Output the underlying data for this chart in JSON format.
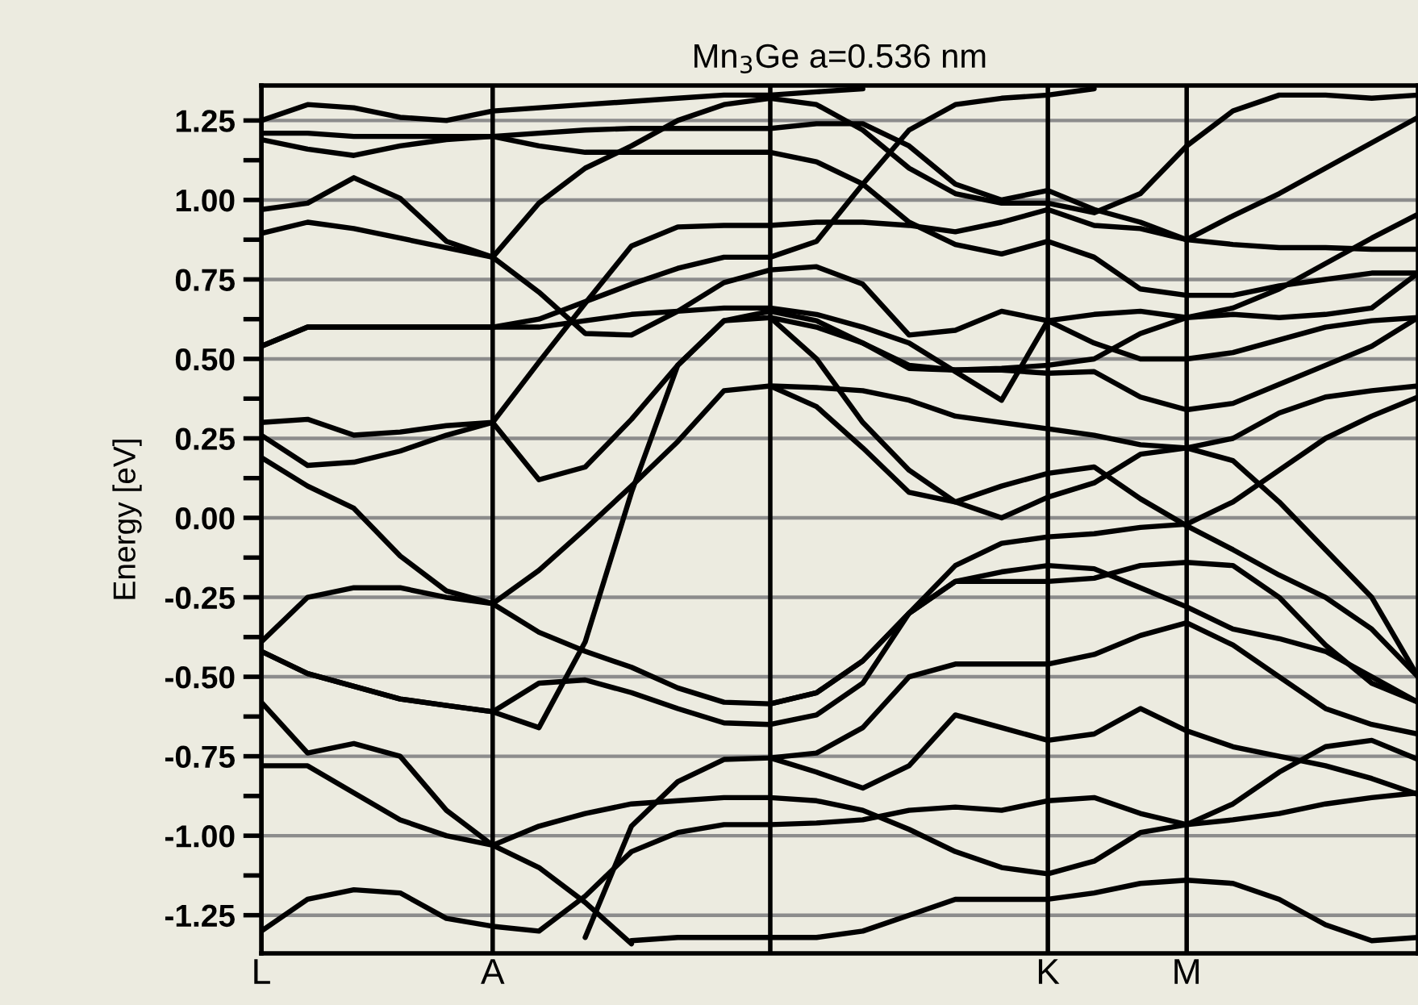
{
  "chart_data": {
    "type": "line",
    "title": "Mn$_{3}$Ge a=0.536 nm",
    "ylabel": "Energy [eV]",
    "categories": [
      "L",
      null,
      null,
      null,
      null,
      "A",
      null,
      null,
      null,
      null,
      null,
      null,
      null,
      null,
      null,
      null,
      null,
      "K",
      null,
      null,
      "M",
      null,
      null,
      null,
      null,
      null
    ],
    "ylim": [
      -1.37,
      1.36
    ],
    "yticks": [
      1.25,
      {
        "value": 1.125,
        "label": null
      },
      {
        "value": 1.0,
        "label": "1.00"
      },
      {
        "value": 0.875,
        "label": null
      },
      0.75,
      {
        "value": 0.625,
        "label": null
      },
      {
        "value": 0.5,
        "label": "0.50"
      },
      {
        "value": 0.375,
        "label": null
      },
      0.25,
      {
        "value": 0.125,
        "label": null
      },
      {
        "value": 0.0,
        "label": "0.00"
      },
      {
        "value": -0.125,
        "label": null
      },
      -0.25,
      {
        "value": -0.375,
        "label": null
      },
      {
        "value": -0.5,
        "label": "-0.50"
      },
      {
        "value": -0.625,
        "label": null
      },
      -0.75,
      {
        "value": -0.875,
        "label": null
      },
      {
        "value": -1.0,
        "label": "-1.00"
      },
      {
        "value": -1.125,
        "label": null
      },
      -1.25
    ],
    "grid": true,
    "line_style": "solid",
    "series": [
      {
        "color": "#000000",
        "values": [
          1.25,
          1.3,
          1.29,
          1.26,
          1.25,
          1.28,
          1.29,
          1.3,
          1.31,
          1.32,
          1.33,
          1.33,
          1.34,
          1.35,
          null,
          null,
          null,
          null,
          null,
          null,
          null,
          null,
          null,
          null,
          null,
          null
        ]
      },
      {
        "color": "#000000",
        "values": [
          1.21,
          1.21,
          1.2,
          1.2,
          1.2,
          1.2,
          1.21,
          1.22,
          1.225,
          1.225,
          1.225,
          1.225,
          1.24,
          1.24,
          1.17,
          1.05,
          1.0,
          1.03,
          0.97,
          0.93,
          0.875,
          0.86,
          0.85,
          0.85,
          0.845,
          0.845
        ]
      },
      {
        "color": "#000000",
        "values": [
          1.19,
          1.16,
          1.14,
          1.17,
          1.19,
          1.2,
          1.17,
          1.15,
          1.15,
          1.15,
          1.15,
          1.15,
          1.12,
          1.05,
          0.93,
          0.86,
          0.83,
          0.87,
          0.82,
          0.72,
          0.7,
          0.7,
          0.73,
          0.75,
          0.77,
          0.77
        ]
      },
      {
        "color": "#000000",
        "values": [
          0.97,
          0.99,
          1.07,
          1.005,
          0.87,
          0.82,
          0.99,
          1.1,
          1.17,
          1.25,
          1.3,
          1.32,
          1.3,
          1.22,
          1.1,
          1.02,
          0.99,
          0.99,
          0.96,
          1.02,
          1.17,
          1.28,
          1.33,
          1.33,
          1.32,
          1.33
        ]
      },
      {
        "color": "#000000",
        "values": [
          0.3,
          0.31,
          0.26,
          0.27,
          0.29,
          0.3,
          0.49,
          0.675,
          0.855,
          0.915,
          0.92,
          0.92,
          0.93,
          0.93,
          0.92,
          0.9,
          0.93,
          0.97,
          0.92,
          0.91,
          0.875,
          0.95,
          1.02,
          1.1,
          1.18,
          1.26
        ]
      },
      {
        "color": "#000000",
        "values": [
          0.54,
          0.6,
          0.6,
          0.6,
          0.6,
          0.6,
          0.625,
          0.68,
          0.735,
          0.785,
          0.82,
          0.82,
          0.87,
          1.05,
          1.22,
          1.3,
          1.32,
          1.33,
          1.35,
          null,
          null,
          null,
          null,
          null,
          null,
          null
        ]
      },
      {
        "color": "#000000",
        "values": [
          0.895,
          0.93,
          0.91,
          0.88,
          0.85,
          0.82,
          0.71,
          0.58,
          0.575,
          0.65,
          0.74,
          0.78,
          0.79,
          0.735,
          0.575,
          0.59,
          0.65,
          0.62,
          0.64,
          0.65,
          0.63,
          0.66,
          0.72,
          0.8,
          0.88,
          0.955
        ]
      },
      {
        "color": "#000000",
        "values": [
          0.54,
          0.6,
          0.6,
          0.6,
          0.6,
          0.6,
          0.6,
          0.62,
          0.64,
          0.65,
          0.66,
          0.66,
          0.64,
          0.6,
          0.55,
          0.46,
          0.37,
          0.62,
          0.55,
          0.5,
          0.5,
          0.52,
          0.56,
          0.6,
          0.62,
          0.63
        ]
      },
      {
        "color": "#000000",
        "values": [
          0.26,
          0.165,
          0.175,
          0.21,
          0.26,
          0.3,
          0.12,
          0.16,
          0.31,
          0.48,
          0.62,
          0.65,
          0.62,
          0.55,
          0.47,
          0.465,
          0.465,
          0.455,
          0.46,
          0.38,
          0.34,
          0.36,
          0.42,
          0.48,
          0.54,
          0.63
        ]
      },
      {
        "color": "#000000",
        "values": [
          -0.42,
          -0.49,
          -0.53,
          -0.57,
          -0.59,
          -0.61,
          -0.66,
          -0.39,
          0.08,
          0.48,
          0.62,
          0.63,
          0.6,
          0.55,
          0.48,
          0.465,
          0.47,
          0.48,
          0.5,
          0.58,
          0.63,
          0.64,
          0.63,
          0.64,
          0.66,
          0.77
        ]
      },
      {
        "color": "#000000",
        "values": [
          0.19,
          0.1,
          0.03,
          -0.12,
          -0.23,
          -0.27,
          -0.165,
          -0.035,
          0.1,
          0.24,
          0.4,
          0.415,
          0.41,
          0.4,
          0.37,
          0.32,
          0.3,
          0.28,
          0.26,
          0.23,
          0.22,
          0.25,
          0.33,
          0.38,
          0.4,
          0.415
        ]
      },
      {
        "color": "#000000",
        "values": [
          -0.39,
          -0.25,
          -0.22,
          -0.22,
          -0.25,
          -0.27,
          -0.36,
          -0.42,
          -0.47,
          -0.535,
          -0.58,
          -0.585,
          -0.55,
          -0.45,
          -0.3,
          -0.15,
          -0.08,
          -0.06,
          -0.05,
          -0.03,
          -0.02,
          0.05,
          0.15,
          0.25,
          0.32,
          0.38
        ]
      },
      {
        "color": "#000000",
        "values": [
          -0.42,
          -0.49,
          -0.53,
          -0.57,
          -0.59,
          -0.61,
          -0.52,
          -0.51,
          -0.55,
          -0.6,
          -0.645,
          -0.65,
          -0.62,
          -0.52,
          -0.3,
          -0.2,
          -0.2,
          -0.2,
          -0.19,
          -0.15,
          -0.14,
          -0.15,
          -0.25,
          -0.4,
          -0.52,
          -0.58
        ]
      },
      {
        "color": "#000000",
        "values": [
          null,
          null,
          null,
          null,
          null,
          null,
          null,
          -1.32,
          -0.97,
          -0.83,
          -0.76,
          -0.755,
          -0.74,
          -0.66,
          -0.5,
          -0.46,
          -0.46,
          -0.46,
          -0.43,
          -0.37,
          -0.33,
          -0.4,
          -0.5,
          -0.6,
          -0.65,
          -0.68
        ]
      },
      {
        "color": "#000000",
        "values": [
          -0.58,
          -0.74,
          -0.71,
          -0.75,
          -0.92,
          -1.03,
          -0.97,
          -0.93,
          -0.9,
          -0.89,
          -0.88,
          -0.88,
          -0.89,
          -0.92,
          -0.98,
          -1.05,
          -1.1,
          -1.12,
          -1.08,
          -0.99,
          -0.965,
          -0.95,
          -0.93,
          -0.9,
          -0.88,
          -0.865
        ]
      },
      {
        "color": "#000000",
        "values": [
          -1.3,
          -1.2,
          -1.17,
          -1.18,
          -1.26,
          -1.285,
          -1.3,
          -1.19,
          -1.05,
          -0.99,
          -0.965,
          -0.965,
          -0.96,
          -0.95,
          -0.92,
          -0.91,
          -0.92,
          -0.89,
          -0.88,
          -0.93,
          -0.965,
          -0.9,
          -0.8,
          -0.72,
          -0.7,
          -0.76
        ]
      },
      {
        "color": "#000000",
        "values": [
          null,
          null,
          null,
          null,
          null,
          null,
          null,
          null,
          -1.33,
          -1.32,
          -1.32,
          -1.32,
          -1.32,
          -1.3,
          -1.25,
          -1.2,
          -1.2,
          -1.2,
          -1.18,
          -1.15,
          -1.14,
          -1.15,
          -1.2,
          -1.28,
          -1.33,
          -1.32
        ]
      },
      {
        "color": "#000000",
        "values": [
          -0.78,
          -0.78,
          -0.865,
          -0.95,
          -1.0,
          -1.03,
          -1.1,
          -1.21,
          -1.34,
          null,
          null,
          null,
          null,
          null,
          null,
          null,
          null,
          null,
          null,
          null,
          null,
          null,
          null,
          null,
          null,
          null
        ]
      },
      {
        "color": "#000000",
        "values": [
          null,
          null,
          null,
          null,
          null,
          null,
          null,
          null,
          null,
          null,
          null,
          -0.755,
          -0.8,
          -0.85,
          -0.78,
          -0.62,
          -0.66,
          -0.7,
          -0.68,
          -0.6,
          -0.67,
          -0.72,
          -0.75,
          -0.78,
          -0.82,
          -0.87
        ]
      },
      {
        "color": "#000000",
        "values": [
          null,
          null,
          null,
          null,
          null,
          null,
          null,
          null,
          null,
          null,
          null,
          0.415,
          0.35,
          0.22,
          0.08,
          0.05,
          0.1,
          0.14,
          0.16,
          0.06,
          -0.025,
          -0.1,
          -0.18,
          -0.25,
          -0.35,
          -0.5
        ]
      },
      {
        "color": "#000000",
        "values": [
          null,
          null,
          null,
          null,
          null,
          null,
          null,
          null,
          null,
          null,
          null,
          0.63,
          0.5,
          0.3,
          0.15,
          0.05,
          0.0,
          0.065,
          0.11,
          0.2,
          0.22,
          0.18,
          0.05,
          -0.1,
          -0.25,
          -0.5
        ]
      },
      {
        "color": "#000000",
        "values": [
          null,
          null,
          null,
          null,
          null,
          null,
          null,
          null,
          null,
          null,
          null,
          -0.585,
          -0.55,
          -0.45,
          -0.3,
          -0.2,
          -0.17,
          -0.15,
          -0.16,
          -0.22,
          -0.28,
          -0.35,
          -0.38,
          -0.42,
          -0.5,
          -0.58
        ]
      }
    ]
  }
}
